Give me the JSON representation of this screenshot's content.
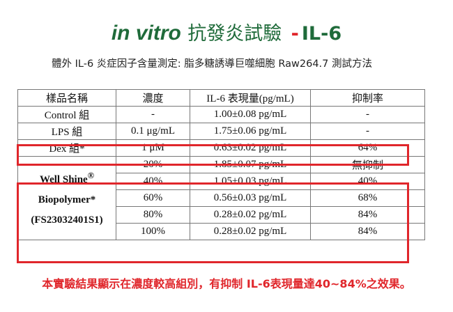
{
  "header": {
    "title_latin": "in vitro",
    "title_cjk": "抗發炎試驗",
    "title_dash": "-",
    "title_marker": "IL-6",
    "subtitle": "體外 IL-6 炎症因子含量測定: 脂多糖誘導巨噬細胞 Raw264.7 測試方法"
  },
  "table": {
    "headers": [
      "樣品名稱",
      "濃度",
      "IL-6 表現量(pg/mL)",
      "抑制率"
    ],
    "rows": [
      {
        "sample": "Control 組",
        "conc": "-",
        "expression": "1.00±0.08 pg/mL",
        "inhibition": "-"
      },
      {
        "sample": "LPS 組",
        "conc": "0.1 μg/mL",
        "expression": "1.75±0.06 pg/mL",
        "inhibition": "-"
      },
      {
        "sample": "Dex 組*",
        "conc": "1 μM",
        "expression": "0.63±0.02 pg/mL",
        "inhibition": "64%"
      }
    ],
    "group": {
      "name_line1": "Well Shine",
      "name_sup": "®",
      "name_line2": "Biopolymer*",
      "name_line3": "(FS23032401S1)",
      "rows": [
        {
          "conc": "20%",
          "expression": "1.85±0.07 pg/mL",
          "inhibition": "無抑制"
        },
        {
          "conc": "40%",
          "expression": "1.05±0.03 pg/mL",
          "inhibition": "40%"
        },
        {
          "conc": "60%",
          "expression": "0.56±0.03 pg/mL",
          "inhibition": "68%"
        },
        {
          "conc": "80%",
          "expression": "0.28±0.02 pg/mL",
          "inhibition": "84%"
        },
        {
          "conc": "100%",
          "expression": "0.28±0.02 pg/mL",
          "inhibition": "84%"
        }
      ]
    }
  },
  "conclusion": "本實驗結果顯示在濃度較高組別，有抑制 IL-6表現量達40~84%之效果。",
  "colors": {
    "title": "#1f6b3a",
    "accent": "#e0262b",
    "text": "#111111",
    "border": "#777777"
  }
}
